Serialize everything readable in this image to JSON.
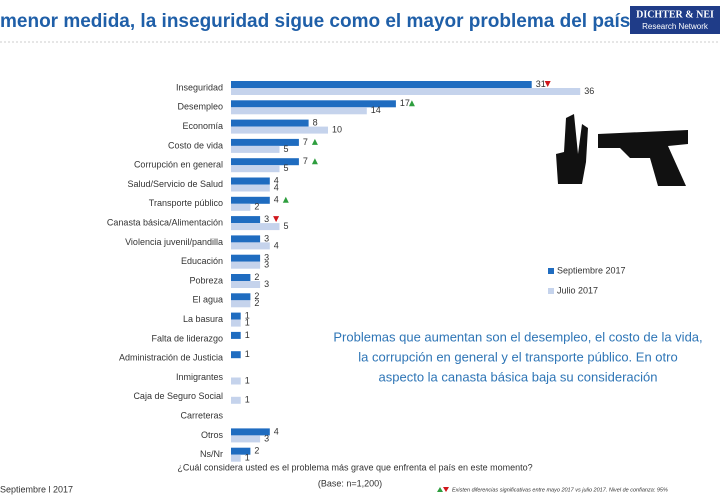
{
  "chart_data": {
    "type": "hbar",
    "title": "menor medida, la inseguridad sigue como el mayor problema del país.",
    "logo": [
      "DICHTER & NEI",
      "Research Network"
    ],
    "date": "Septiembre l 2017",
    "question": "¿Cuál considera usted es el problema más grave que enfrenta el país en este momento?",
    "base": "(Base: n=1,200)",
    "footnote": "Existen diferencias significativas entre mayo 2017 vs julio 2017. Nivel de confianza: 95%",
    "annotation": [
      "Problemas que aumentan son el desempleo, el costo de la vida,",
      "la corrupción en general y  el transporte público. En otro",
      "aspecto la canasta básica baja su consideración"
    ],
    "categories": [
      "Inseguridad",
      "Desempleo",
      "Economía",
      "Costo de vida",
      "Corrupción en general",
      "Salud/Servicio de Salud",
      "Transporte público",
      "Canasta básica/Alimentación",
      "Violencia juvenil/pandilla",
      "Educación",
      "Pobreza",
      "El agua",
      "La basura",
      "Falta de liderazgo",
      "Administración de Justicia",
      "Inmigrantes",
      "Caja de Seguro Social",
      "Carreteras",
      "Otros",
      "Ns/Nr"
    ],
    "series": [
      {
        "name": "Septiembre 2017",
        "color": "#1f6cc0",
        "values": [
          31,
          17,
          8,
          7,
          7,
          4,
          4,
          3,
          3,
          3,
          2,
          2,
          1,
          1,
          1,
          null,
          null,
          null,
          4,
          2
        ]
      },
      {
        "name": "Julio 2017",
        "color": "#c5d3ec",
        "values": [
          36,
          14,
          10,
          5,
          5,
          4,
          2,
          5,
          4,
          3,
          3,
          2,
          1,
          null,
          null,
          1,
          1,
          null,
          3,
          1
        ]
      }
    ],
    "change": [
      "down",
      "up",
      null,
      "up",
      "up",
      null,
      "up",
      "down",
      null,
      null,
      null,
      null,
      null,
      null,
      null,
      null,
      null,
      null,
      null,
      null
    ],
    "change_colors": {
      "up": "#2e9e3e",
      "down": "#d0161b"
    }
  }
}
